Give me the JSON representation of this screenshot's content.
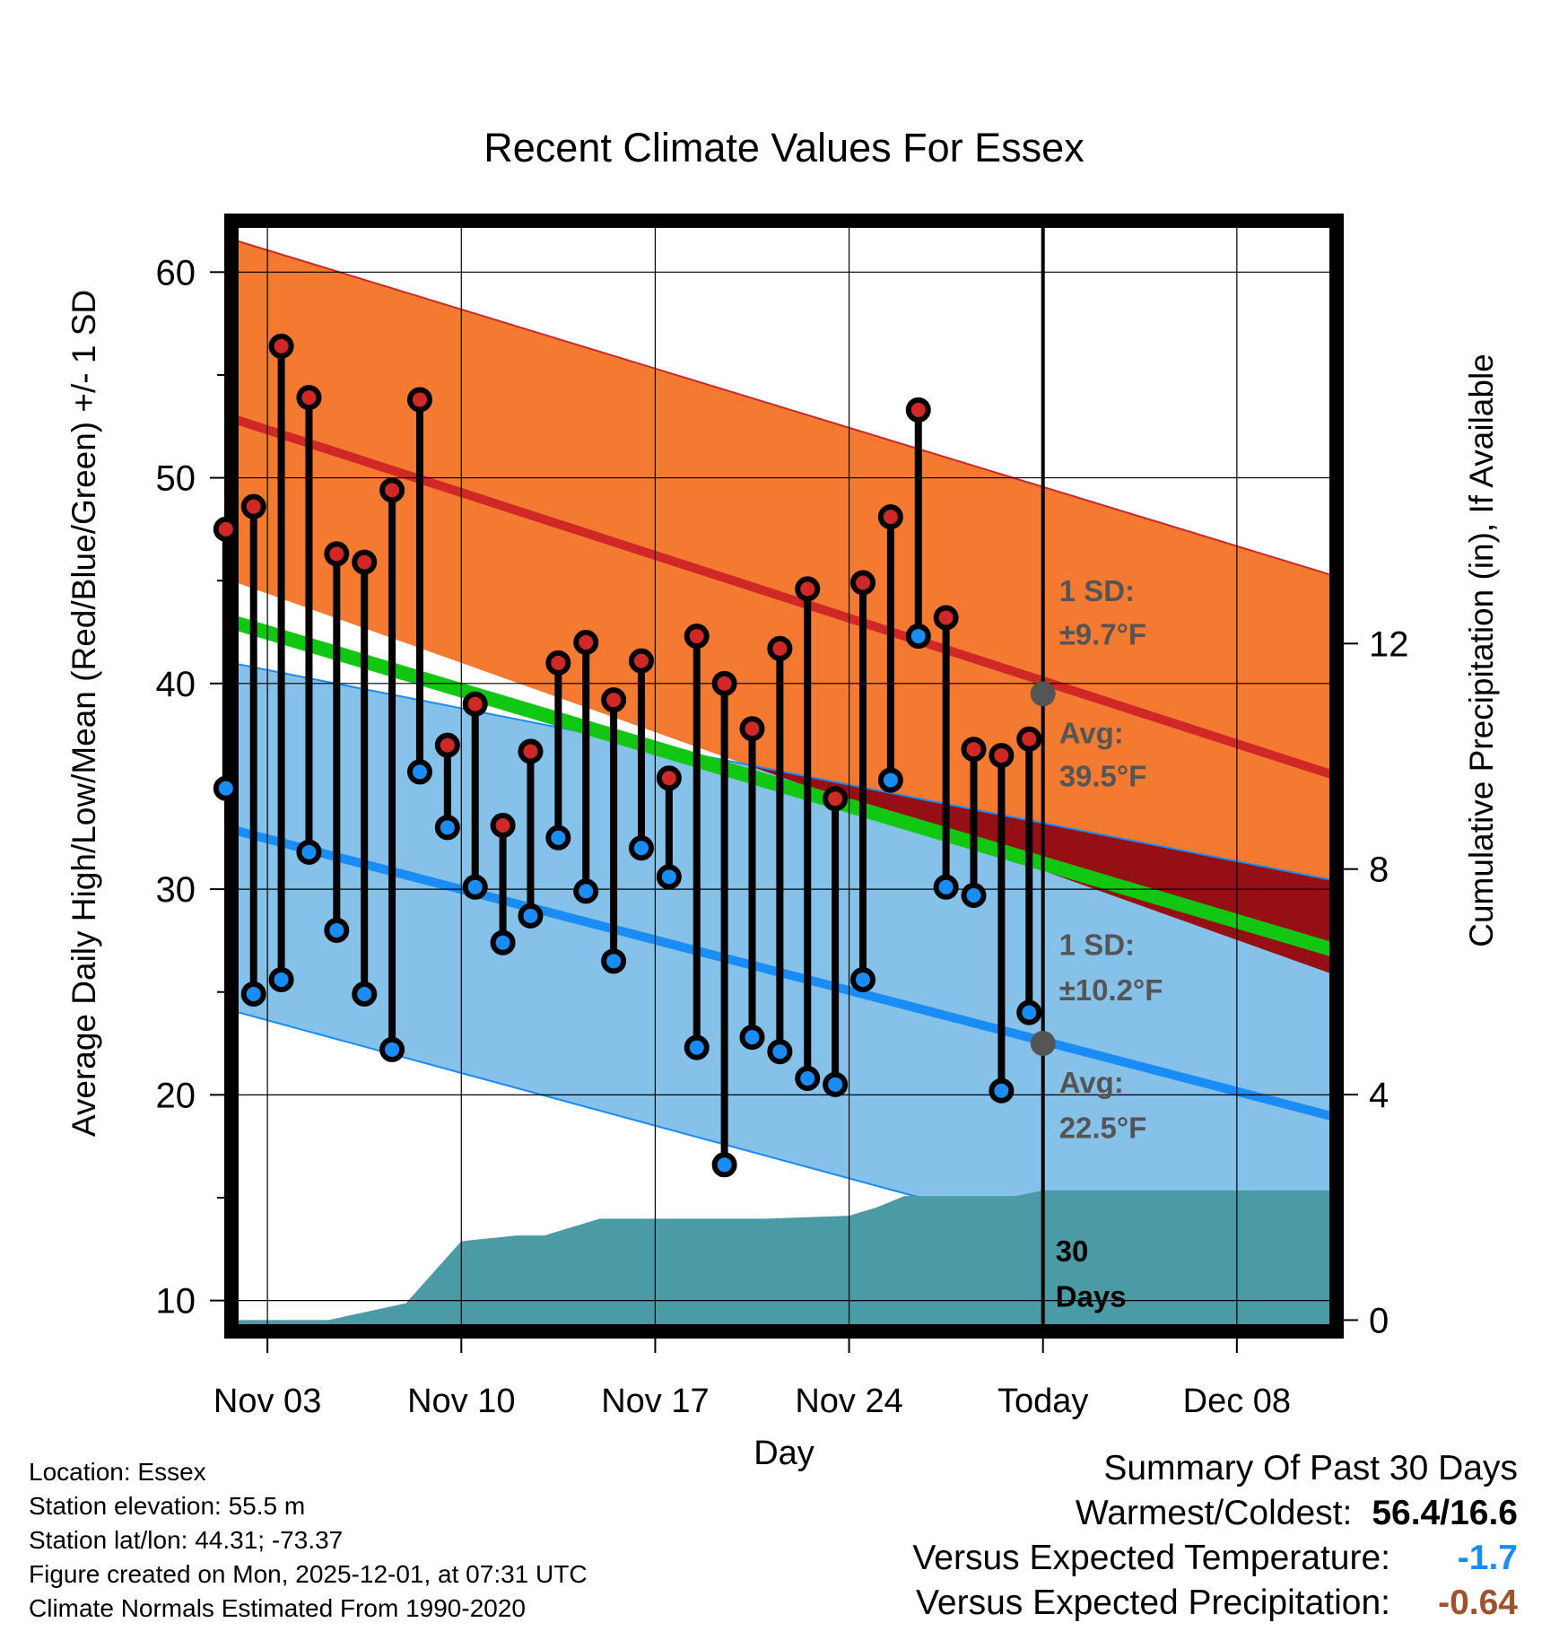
{
  "chart_data": {
    "type": "line",
    "title": "Recent Climate Values For Essex",
    "xlabel": "Day",
    "ylabel": "Average Daily High/Low/Mean (Red/Blue/Green) +/- 1 SD",
    "y2label": "Cumulative Precipitation (in), If Available",
    "x_day_range": [
      -29.3,
      10.6
    ],
    "ylim": [
      8.5,
      62.5
    ],
    "y2lim": [
      -0.2,
      19.5
    ],
    "x_ticks": [
      {
        "day": -28,
        "label": "Nov 03"
      },
      {
        "day": -21,
        "label": "Nov 10"
      },
      {
        "day": -14,
        "label": "Nov 17"
      },
      {
        "day": -7,
        "label": "Nov 24"
      },
      {
        "day": 0,
        "label": "Today"
      },
      {
        "day": 7,
        "label": "Dec 08"
      }
    ],
    "y_ticks": [
      10,
      20,
      30,
      40,
      50,
      60
    ],
    "y2_ticks": [
      0,
      4,
      8,
      12
    ],
    "normals": {
      "x": [
        -29.3,
        10.6
      ],
      "high_mean": [
        52.9,
        35.5
      ],
      "high_upper": [
        61.6,
        45.2
      ],
      "high_lower": [
        45.0,
        25.8
      ],
      "low_mean": [
        32.9,
        18.9
      ],
      "low_upper": [
        41.0,
        30.4
      ],
      "low_lower": [
        24.1,
        9.5
      ],
      "mean": [
        43.0,
        27.0
      ]
    },
    "daily": {
      "day": [
        -30,
        -29,
        -28,
        -27,
        -26,
        -25,
        -24,
        -23,
        -22,
        -21,
        -20,
        -19,
        -18,
        -17,
        -16,
        -15,
        -14,
        -13,
        -12,
        -11,
        -10,
        -9,
        -8,
        -7,
        -6,
        -5,
        -4,
        -3,
        -2,
        -1
      ],
      "high": [
        47.5,
        48.6,
        56.4,
        53.9,
        46.3,
        45.9,
        49.4,
        53.8,
        37.0,
        39.0,
        33.1,
        36.7,
        41.0,
        42.0,
        39.2,
        41.1,
        35.4,
        42.3,
        40.0,
        37.8,
        41.7,
        44.6,
        34.4,
        44.9,
        48.1,
        53.3,
        43.2,
        36.8,
        36.5,
        37.3
      ],
      "low": [
        34.9,
        24.9,
        25.6,
        31.8,
        28.0,
        24.9,
        22.2,
        35.7,
        33.0,
        30.1,
        27.4,
        28.7,
        32.5,
        29.9,
        26.5,
        32.0,
        30.6,
        22.3,
        16.6,
        22.8,
        22.1,
        20.8,
        20.5,
        25.6,
        35.3,
        42.3,
        30.1,
        29.7,
        20.2,
        24.0
      ]
    },
    "precip_cumulative": {
      "day": [
        -29.3,
        -25.8,
        -23.0,
        -21.0,
        -19.0,
        -18.0,
        -16.0,
        -14.0,
        -12.0,
        -10.0,
        -7.0,
        -6.0,
        -5.0,
        -4.0,
        -1.0,
        0.0,
        10.6
      ],
      "value": [
        0.0,
        0.0,
        0.3,
        1.4,
        1.5,
        1.5,
        1.8,
        1.8,
        1.8,
        1.8,
        1.85,
        2.0,
        2.2,
        2.2,
        2.2,
        2.3,
        2.3
      ]
    },
    "colors": {
      "high_band": "#f47a31",
      "high_line": "#d02727",
      "low_band": "#85c1e8",
      "low_line": "#1a8cf5",
      "mean_line": "#11c711",
      "overlap": "#960f14",
      "precip": "#4a9ba5",
      "dot_high": "#d02727",
      "dot_low": "#1a8cf5",
      "annotation": "#555555"
    },
    "annotations": {
      "high_sd_label": "1 SD:",
      "high_sd_value": "±9.7°F",
      "high_avg_label": "Avg:",
      "high_avg_value": "39.5°F",
      "high_avg": 39.5,
      "low_sd_label": "1 SD:",
      "low_sd_value": "±10.2°F",
      "low_avg_label": "Avg:",
      "low_avg_value": "22.5°F",
      "low_avg": 22.5,
      "window_line1": "30",
      "window_line2": "Days"
    }
  },
  "station": {
    "location": "Location: Essex",
    "elevation": "Station elevation: 55.5 m",
    "latlon": "Station lat/lon: 44.31; -73.37",
    "created": "Figure created on Mon, 2025-12-01, at 07:31 UTC",
    "normals": "Climate Normals Estimated From 1990-2020"
  },
  "summary": {
    "title": "Summary Of Past 30 Days",
    "warmest_label": "Warmest/Coldest:",
    "warmest_value": "56.4/16.6",
    "temp_label": "Versus Expected Temperature:",
    "temp_value": "-1.7",
    "temp_color": "#1a8cf5",
    "precip_label": "Versus Expected Precipitation:",
    "precip_value": "-0.64",
    "precip_color": "#a0522d"
  }
}
